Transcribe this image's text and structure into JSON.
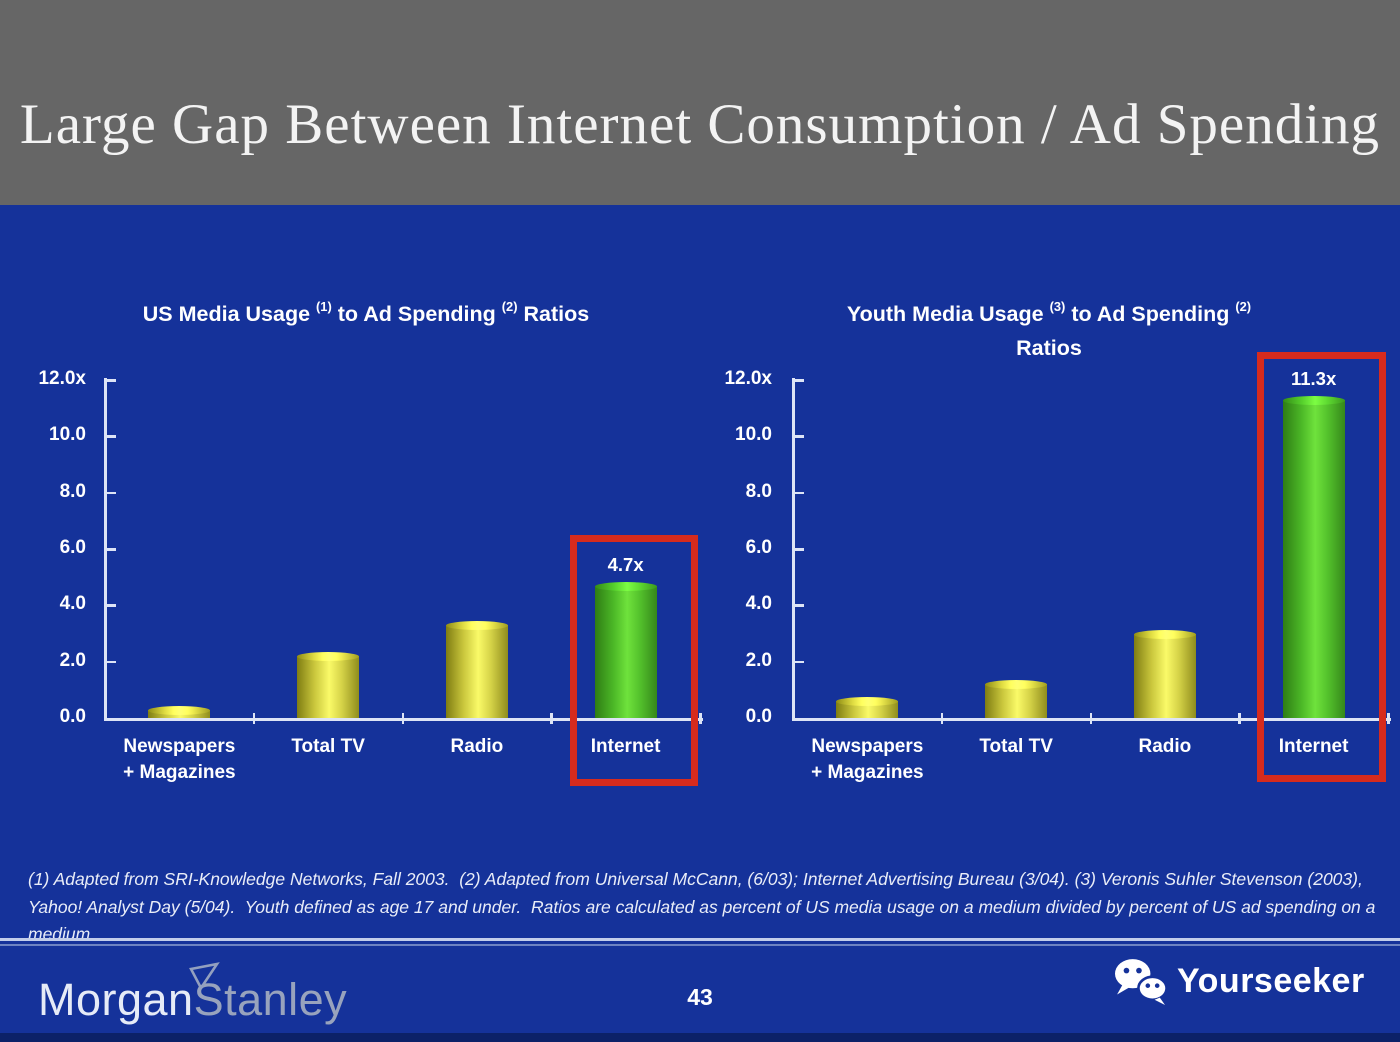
{
  "slide": {
    "title": "Large Gap Between Internet Consumption / Ad Spending"
  },
  "chart_data": [
    {
      "type": "bar",
      "title": "US Media Usage (1) to Ad Spending (2) Ratios",
      "title_lines": [
        [
          {
            "t": "US Media Usage "
          },
          {
            "t": "(1)",
            "sup": true
          },
          {
            "t": " to Ad Spending "
          },
          {
            "t": "(2)",
            "sup": true
          },
          {
            "t": " Ratios"
          }
        ]
      ],
      "categories": [
        "Newspapers + Magazines",
        "Total TV",
        "Radio",
        "Internet"
      ],
      "category_lines": [
        [
          "Newspapers",
          "+ Magazines"
        ],
        [
          "Total TV"
        ],
        [
          "Radio"
        ],
        [
          "Internet"
        ]
      ],
      "values": [
        0.3,
        2.2,
        3.3,
        4.7
      ],
      "bar_colors": [
        "yellow",
        "yellow",
        "yellow",
        "green"
      ],
      "value_labels": [
        null,
        null,
        null,
        "4.7x"
      ],
      "highlight_index": 3,
      "xlabel": "",
      "ylabel": "",
      "ylim": [
        0,
        12
      ],
      "yticks": [
        "0.0",
        "2.0",
        "4.0",
        "6.0",
        "8.0",
        "10.0",
        "12.0x"
      ],
      "grid": false,
      "legend": null
    },
    {
      "type": "bar",
      "title": "Youth Media Usage (3) to Ad Spending (2) Ratios",
      "title_lines": [
        [
          {
            "t": "Youth Media Usage "
          },
          {
            "t": "(3)",
            "sup": true
          },
          {
            "t": " to Ad Spending "
          },
          {
            "t": "(2)",
            "sup": true
          }
        ],
        [
          {
            "t": "Ratios"
          }
        ]
      ],
      "categories": [
        "Newspapers + Magazines",
        "Total TV",
        "Radio",
        "Internet"
      ],
      "category_lines": [
        [
          "Newspapers",
          "+ Magazines"
        ],
        [
          "Total TV"
        ],
        [
          "Radio"
        ],
        [
          "Internet"
        ]
      ],
      "values": [
        0.6,
        1.2,
        3.0,
        11.3
      ],
      "bar_colors": [
        "yellow",
        "yellow",
        "yellow",
        "green"
      ],
      "value_labels": [
        null,
        null,
        null,
        "11.3x"
      ],
      "highlight_index": 3,
      "xlabel": "",
      "ylabel": "",
      "ylim": [
        0,
        12
      ],
      "yticks": [
        "0.0",
        "2.0",
        "4.0",
        "6.0",
        "8.0",
        "10.0",
        "12.0x"
      ],
      "grid": false,
      "legend": null
    }
  ],
  "footnote": {
    "text": "(1) Adapted from SRI-Knowledge Networks, Fall 2003.  (2) Adapted from Universal McCann, (6/03); Internet Advertising Bureau (3/04). (3) Veronis Suhler Stevenson (2003), Yahoo! Analyst Day (5/04).  Youth defined as age 17 and under.  Ratios are calculated as percent of US media usage on a medium divided by percent of US ad spending on a medium."
  },
  "footer": {
    "brand_morgan": "Morgan",
    "brand_stanley": "Stanley",
    "page_number": "43",
    "watermark": "Yourseeker"
  },
  "colors": {
    "background": "#15329A",
    "header_gray": "#666666",
    "bar_yellow": "#F7F45F",
    "bar_green": "#5FD634",
    "highlight_red": "#D62B1D",
    "text": "#FFFFFF"
  }
}
